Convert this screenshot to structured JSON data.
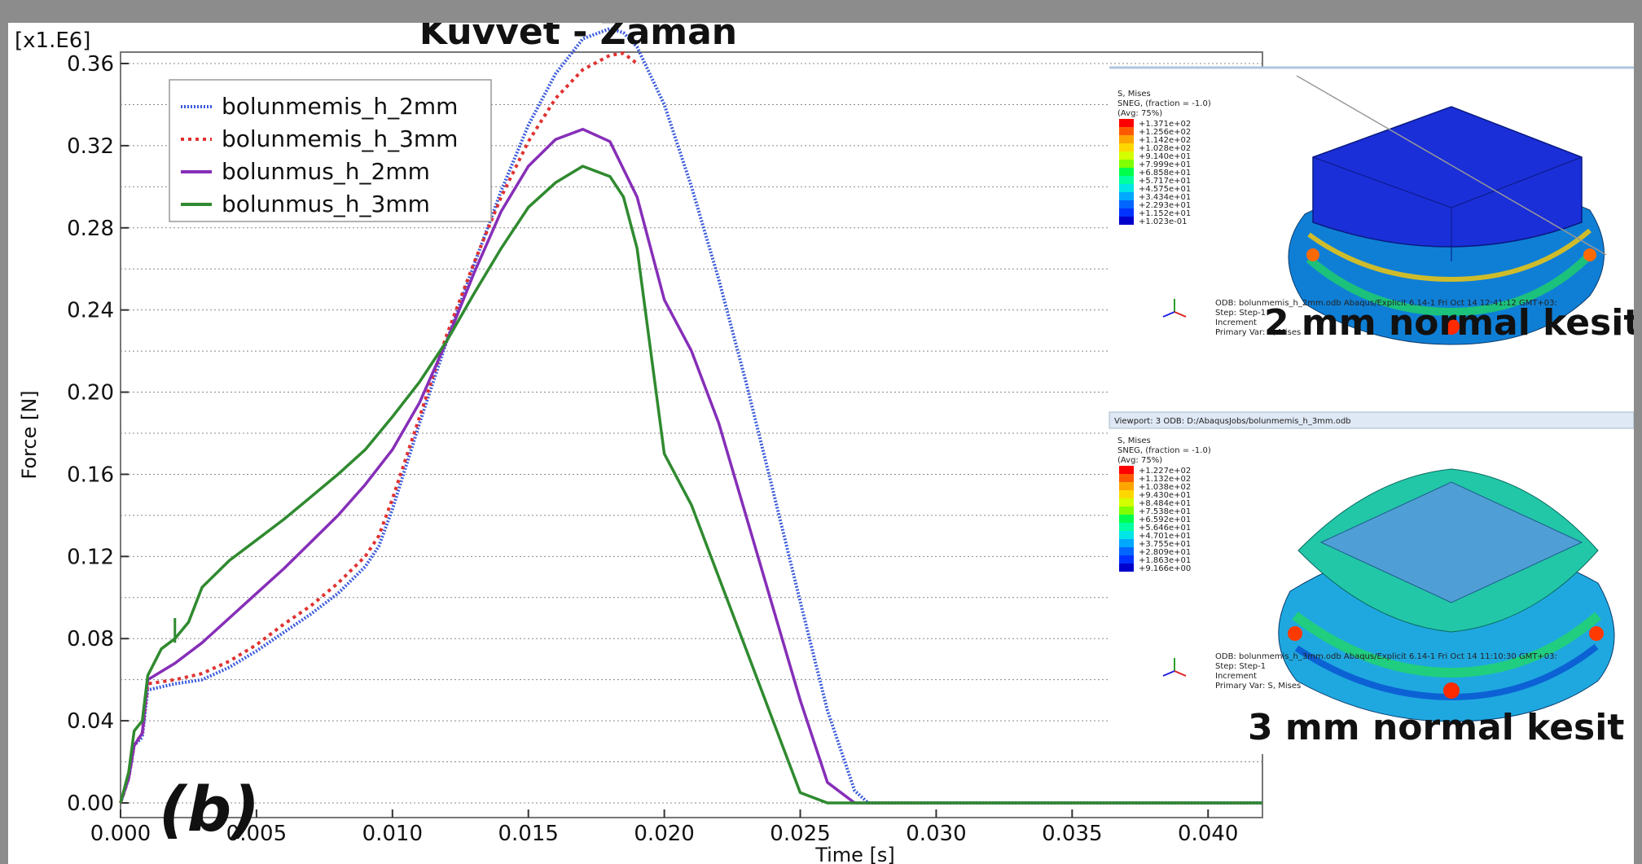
{
  "chart_data": {
    "type": "line",
    "title": "Kuvvet - Zaman",
    "xlabel": "Time [s]",
    "ylabel": "Force [N]",
    "y_multiplier": "[x1.E6]",
    "xlim": [
      0.0,
      0.042
    ],
    "ylim": [
      0.0,
      0.36
    ],
    "x_ticks": [
      "0.000",
      "0.005",
      "0.010",
      "0.015",
      "0.020",
      "0.025",
      "0.030",
      "0.035",
      "0.040"
    ],
    "y_ticks": [
      "0.00",
      "0.04",
      "0.08",
      "0.12",
      "0.16",
      "0.20",
      "0.24",
      "0.28",
      "0.32",
      "0.36"
    ],
    "grid": "horizontal dotted",
    "legend_position": "top-left",
    "panel_label": "(b)",
    "series": [
      {
        "name": "bolunmemis_h_2mm",
        "color": "#3b5bdb",
        "style": "dotted",
        "x": [
          0.0,
          0.0003,
          0.0005,
          0.0008,
          0.001,
          0.002,
          0.003,
          0.004,
          0.005,
          0.006,
          0.007,
          0.008,
          0.009,
          0.0095,
          0.01,
          0.011,
          0.012,
          0.013,
          0.014,
          0.015,
          0.016,
          0.017,
          0.018,
          0.0185,
          0.019,
          0.02,
          0.021,
          0.022,
          0.023,
          0.024,
          0.025,
          0.026,
          0.027,
          0.0275,
          0.03,
          0.035,
          0.04,
          0.042
        ],
        "y": [
          0.0,
          0.012,
          0.028,
          0.032,
          0.055,
          0.058,
          0.06,
          0.066,
          0.074,
          0.083,
          0.092,
          0.102,
          0.115,
          0.125,
          0.143,
          0.185,
          0.225,
          0.262,
          0.298,
          0.33,
          0.355,
          0.372,
          0.377,
          0.375,
          0.368,
          0.34,
          0.3,
          0.255,
          0.205,
          0.152,
          0.098,
          0.045,
          0.006,
          0.0,
          0.0,
          0.0,
          0.0,
          0.0
        ]
      },
      {
        "name": "bolunmemis_h_3mm",
        "color": "#e03131",
        "style": "dotted",
        "x": [
          0.0,
          0.0003,
          0.0005,
          0.0008,
          0.001,
          0.002,
          0.003,
          0.004,
          0.005,
          0.006,
          0.007,
          0.008,
          0.009,
          0.0095,
          0.01,
          0.011,
          0.012,
          0.013,
          0.014,
          0.015,
          0.016,
          0.017,
          0.018,
          0.0185,
          0.019
        ],
        "y": [
          0.0,
          0.012,
          0.028,
          0.034,
          0.058,
          0.06,
          0.063,
          0.069,
          0.077,
          0.087,
          0.096,
          0.107,
          0.12,
          0.13,
          0.148,
          0.188,
          0.228,
          0.263,
          0.295,
          0.322,
          0.343,
          0.357,
          0.364,
          0.365,
          0.36
        ]
      },
      {
        "name": "bolunmus_h_2mm",
        "color": "#862eb8",
        "style": "solid",
        "x": [
          0.0,
          0.0003,
          0.0005,
          0.0008,
          0.001,
          0.002,
          0.003,
          0.004,
          0.005,
          0.006,
          0.007,
          0.008,
          0.009,
          0.01,
          0.011,
          0.012,
          0.013,
          0.014,
          0.015,
          0.016,
          0.017,
          0.018,
          0.019,
          0.02,
          0.021,
          0.022,
          0.023,
          0.024,
          0.025,
          0.026,
          0.027,
          0.0275,
          0.03,
          0.035,
          0.04,
          0.042
        ],
        "y": [
          0.0,
          0.012,
          0.028,
          0.034,
          0.06,
          0.068,
          0.078,
          0.09,
          0.102,
          0.114,
          0.127,
          0.14,
          0.155,
          0.172,
          0.195,
          0.225,
          0.258,
          0.288,
          0.31,
          0.323,
          0.328,
          0.322,
          0.295,
          0.245,
          0.22,
          0.185,
          0.14,
          0.095,
          0.05,
          0.01,
          0.0,
          0.0,
          0.0,
          0.0,
          0.0,
          0.0
        ]
      },
      {
        "name": "bolunmus_h_3mm",
        "color": "#2f8a2f",
        "style": "solid",
        "x": [
          0.0,
          0.0003,
          0.0005,
          0.0008,
          0.001,
          0.0015,
          0.002,
          0.0025,
          0.003,
          0.004,
          0.005,
          0.006,
          0.007,
          0.008,
          0.009,
          0.01,
          0.011,
          0.012,
          0.013,
          0.014,
          0.015,
          0.016,
          0.017,
          0.018,
          0.0185,
          0.019,
          0.02,
          0.021,
          0.022,
          0.023,
          0.024,
          0.025,
          0.026,
          0.027,
          0.0275,
          0.03,
          0.035,
          0.04,
          0.042
        ],
        "y": [
          0.0,
          0.015,
          0.035,
          0.04,
          0.062,
          0.075,
          0.08,
          0.088,
          0.105,
          0.118,
          0.128,
          0.138,
          0.149,
          0.16,
          0.172,
          0.188,
          0.205,
          0.225,
          0.248,
          0.27,
          0.29,
          0.302,
          0.31,
          0.305,
          0.295,
          0.27,
          0.17,
          0.145,
          0.11,
          0.075,
          0.04,
          0.005,
          0.0,
          0.0,
          0.0,
          0.0,
          0.0,
          0.0,
          0.0
        ]
      }
    ]
  },
  "insets": [
    {
      "label": "2 mm normal kesit",
      "legend_title": [
        "S, Mises",
        "SNEG, (fraction = -1.0)",
        "(Avg: 75%)"
      ],
      "legend_values": [
        "+1.371e+02",
        "+1.256e+02",
        "+1.142e+02",
        "+1.028e+02",
        "+9.140e+01",
        "+7.999e+01",
        "+6.858e+01",
        "+5.717e+01",
        "+4.575e+01",
        "+3.434e+01",
        "+2.293e+01",
        "+1.152e+01",
        "+1.023e-01"
      ],
      "info_lines": [
        "ODB: bolunmemis_h_2mm.odb   Abaqus/Explicit 6.14-1   Fri Oct 14 12:41:12 GMT+03:",
        "Step: Step-1",
        "Increment",
        "Primary Var: S, Mises"
      ]
    },
    {
      "viewport_title": "Viewport: 3    ODB: D:/AbaqusJobs/bolunmemis_h_3mm.odb",
      "label": "3 mm normal kesit",
      "legend_title": [
        "S, Mises",
        "SNEG, (fraction = -1.0)",
        "(Avg: 75%)"
      ],
      "legend_values": [
        "+1.227e+02",
        "+1.132e+02",
        "+1.038e+02",
        "+9.430e+01",
        "+8.484e+01",
        "+7.538e+01",
        "+6.592e+01",
        "+5.646e+01",
        "+4.701e+01",
        "+3.755e+01",
        "+2.809e+01",
        "+1.863e+01",
        "+9.166e+00"
      ],
      "info_lines": [
        "ODB: bolunmemis_h_3mm.odb   Abaqus/Explicit 6.14-1   Fri Oct 14 11:10:30 GMT+03:",
        "Step: Step-1",
        "Increment",
        "Primary Var: S, Mises"
      ]
    }
  ],
  "contour_colors": [
    "#ff0000",
    "#ff5a00",
    "#ffa500",
    "#ffd700",
    "#d4ff00",
    "#7fff00",
    "#00ff4c",
    "#00ffa0",
    "#00e5e5",
    "#00a8ff",
    "#0066ff",
    "#0033ff",
    "#0000cc"
  ]
}
